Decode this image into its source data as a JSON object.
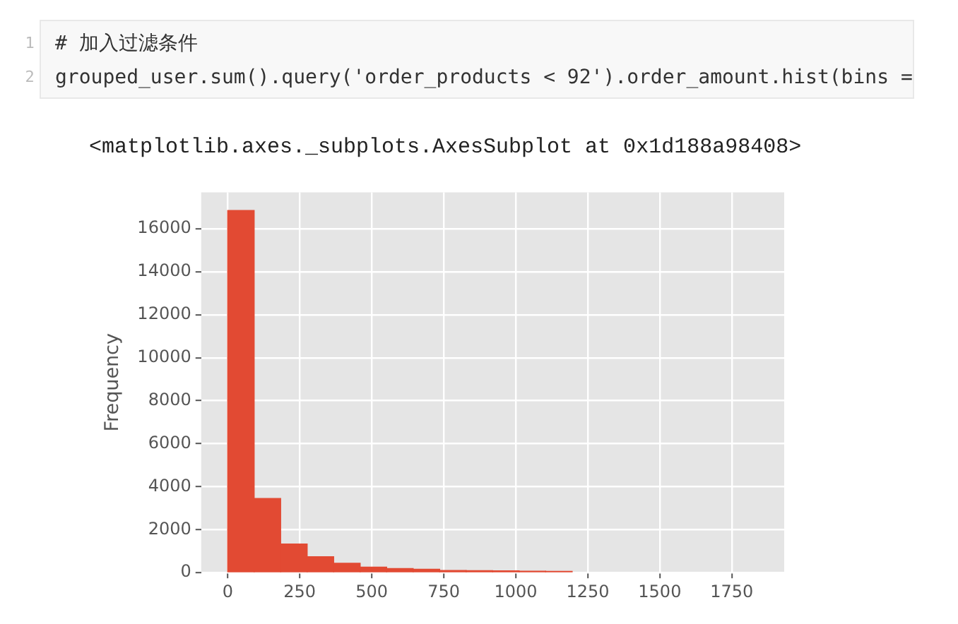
{
  "chart_data": {
    "type": "histogram",
    "ylabel": "Frequency",
    "bins": [
      0,
      92,
      184,
      276,
      368,
      460,
      552,
      644,
      736,
      828,
      920,
      1012,
      1104,
      1196
    ],
    "values": [
      16850,
      3450,
      1330,
      740,
      440,
      260,
      190,
      160,
      100,
      90,
      80,
      70,
      60
    ],
    "color": "#e24a33",
    "xlim": [
      -92,
      1932
    ],
    "ylim": [
      0,
      17700
    ],
    "xticks": [
      0,
      250,
      500,
      750,
      1000,
      1250,
      1500,
      1750
    ],
    "yticks": [
      0,
      2000,
      4000,
      6000,
      8000,
      10000,
      12000,
      14000,
      16000
    ],
    "grid": true,
    "annotations": [
      "1",
      "# 加入过滤条件",
      "2",
      "grouped_user.sum().query('order_products < 92').order_amount.hist(bins =",
      "<matplotlib.axes._subplots.AxesSubplot at 0x1d188a98408>"
    ]
  }
}
